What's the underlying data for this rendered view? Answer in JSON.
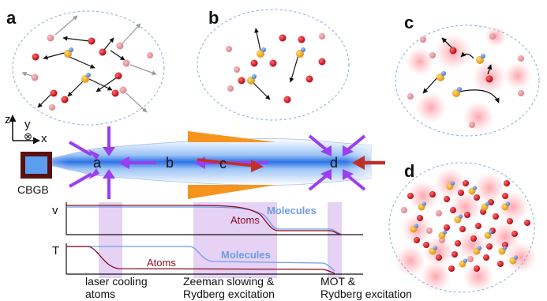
{
  "panels": {
    "a": "a",
    "b": "b",
    "c": "c",
    "d": "d"
  },
  "beam_labels": {
    "a": "a",
    "b": "b",
    "c": "c",
    "d": "d"
  },
  "axes": {
    "z": "z",
    "y": "y",
    "x": "x",
    "y_symbol": "⊗"
  },
  "source_label": "CBGB",
  "plot_v": {
    "axis_label": "v",
    "atoms_label": "Atoms",
    "molecules_label": "Molecules"
  },
  "plot_t": {
    "axis_label": "T",
    "atoms_label": "Atoms",
    "molecules_label": "Molecules"
  },
  "stages": [
    {
      "line1": "laser cooling",
      "line2": "atoms"
    },
    {
      "line1": "Zeeman slowing &",
      "line2": "Rydberg excitation"
    },
    {
      "line1": "MOT &",
      "line2": "Rydberg excitation"
    }
  ],
  "colors": {
    "atom": "#cc1111",
    "atom_faded": "#e88a94",
    "molecule_yellow": "#f0a820",
    "molecule_blue": "#4f88d8",
    "laser": "#9b3ef0",
    "slower": "#f7941d",
    "push_arrow": "#c0302a",
    "atoms_curve": "#8b0a1e",
    "molecules_curve": "#6e9de6",
    "stage_shade": "#e6d2f4",
    "cbgb": "#5a1010",
    "cbgb_inner": "#5b9ef0"
  }
}
